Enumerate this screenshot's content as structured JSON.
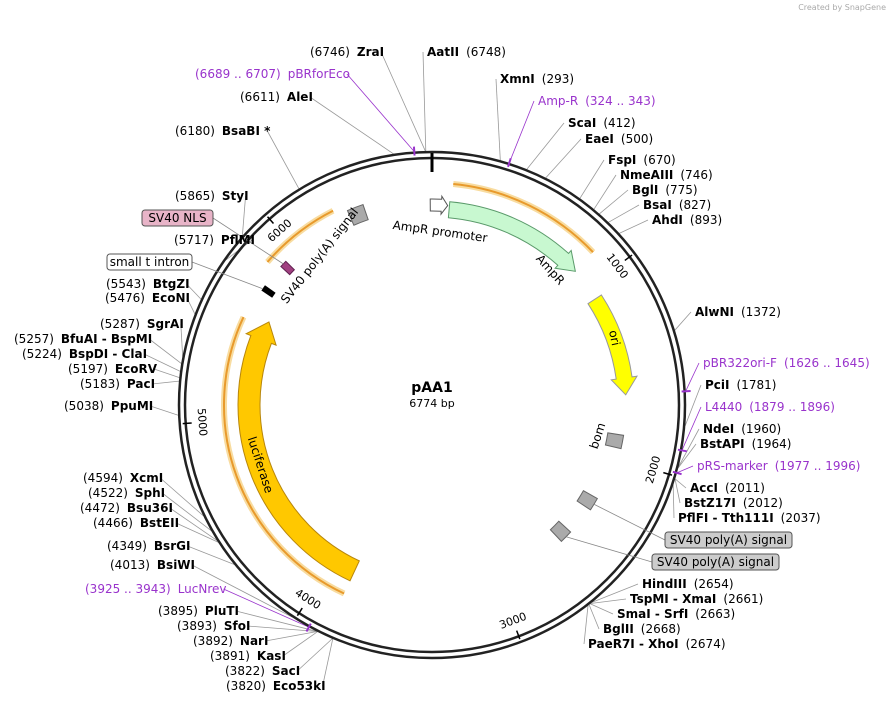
{
  "header": {
    "credit": "Created by SnapGene"
  },
  "map": {
    "name": "pAA1",
    "size": {
      "value": 6774,
      "label": "6774 bp"
    },
    "ticks": [
      1000,
      2000,
      3000,
      4000,
      5000,
      6000
    ]
  },
  "sites": [
    {
      "name": "ZraI",
      "pos": "(6746)"
    },
    {
      "name": "AatII",
      "pos": "(6748)"
    },
    {
      "name": "AleI",
      "pos": "(6611)"
    },
    {
      "name": "XmnI",
      "pos": "(293)"
    },
    {
      "name": "ScaI",
      "pos": "(412)"
    },
    {
      "name": "EaeI",
      "pos": "(500)"
    },
    {
      "name": "FspI",
      "pos": "(670)"
    },
    {
      "name": "NmeAIII",
      "pos": "(746)"
    },
    {
      "name": "BglI",
      "pos": "(775)"
    },
    {
      "name": "BsaI",
      "pos": "(827)"
    },
    {
      "name": "AhdI",
      "pos": "(893)"
    },
    {
      "name": "BsaBI *",
      "pos": "(6180)"
    },
    {
      "name": "StyI",
      "pos": "(5865)"
    },
    {
      "name": "PflMI",
      "pos": "(5717)"
    },
    {
      "name": "BtgZI",
      "pos": "(5543)"
    },
    {
      "name": "EcoNI",
      "pos": "(5476)"
    },
    {
      "name": "AlwNI",
      "pos": "(1372)"
    },
    {
      "name": "SgrAI",
      "pos": "(5287)"
    },
    {
      "name": "BfuAI - BspMI",
      "pos": "(5257)"
    },
    {
      "name": "BspDI - ClaI",
      "pos": "(5224)"
    },
    {
      "name": "EcoRV",
      "pos": "(5197)"
    },
    {
      "name": "PacI",
      "pos": "(5183)"
    },
    {
      "name": "PpuMI",
      "pos": "(5038)"
    },
    {
      "name": "PciI",
      "pos": "(1781)"
    },
    {
      "name": "NdeI",
      "pos": "(1960)"
    },
    {
      "name": "BstAPI",
      "pos": "(1964)"
    },
    {
      "name": "AccI",
      "pos": "(2011)"
    },
    {
      "name": "BstZ17I",
      "pos": "(2012)"
    },
    {
      "name": "PflFI - Tth111I",
      "pos": "(2037)"
    },
    {
      "name": "HindIII",
      "pos": "(2654)"
    },
    {
      "name": "TspMI - XmaI",
      "pos": "(2661)"
    },
    {
      "name": "SmaI - SrfI",
      "pos": "(2663)"
    },
    {
      "name": "BglII",
      "pos": "(2668)"
    },
    {
      "name": "PaeR7I - XhoI",
      "pos": "(2674)"
    },
    {
      "name": "XcmI",
      "pos": "(4594)"
    },
    {
      "name": "SphI",
      "pos": "(4522)"
    },
    {
      "name": "Bsu36I",
      "pos": "(4472)"
    },
    {
      "name": "BstEII",
      "pos": "(4466)"
    },
    {
      "name": "BsrGI",
      "pos": "(4349)"
    },
    {
      "name": "BsiWI",
      "pos": "(4013)"
    },
    {
      "name": "PluTI",
      "pos": "(3895)"
    },
    {
      "name": "SfoI",
      "pos": "(3893)"
    },
    {
      "name": "NarI",
      "pos": "(3892)"
    },
    {
      "name": "KasI",
      "pos": "(3891)"
    },
    {
      "name": "SacI",
      "pos": "(3822)"
    },
    {
      "name": "Eco53kI",
      "pos": "(3820)"
    }
  ],
  "primers": [
    {
      "name": "pBRforEco",
      "range": "(6689 .. 6707)"
    },
    {
      "name": "Amp-R",
      "range": "(324 .. 343)"
    },
    {
      "name": "pBR322ori-F",
      "range": "(1626 .. 1645)"
    },
    {
      "name": "L4440",
      "range": "(1879 .. 1896)"
    },
    {
      "name": "pRS-marker",
      "range": "(1977 .. 1996)"
    },
    {
      "name": "LucNrev",
      "range": "(3925 .. 3943)"
    }
  ],
  "features": [
    {
      "name": "AmpR promoter"
    },
    {
      "name": "AmpR"
    },
    {
      "name": "ori"
    },
    {
      "name": "bom"
    },
    {
      "name": "luciferase"
    },
    {
      "name": "SV40 poly(A) signal"
    },
    {
      "name": "SV40 NLS"
    },
    {
      "name": "small t intron"
    },
    {
      "name": "SV40 poly(A) signal"
    },
    {
      "name": "SV40 poly(A) signal"
    }
  ]
}
